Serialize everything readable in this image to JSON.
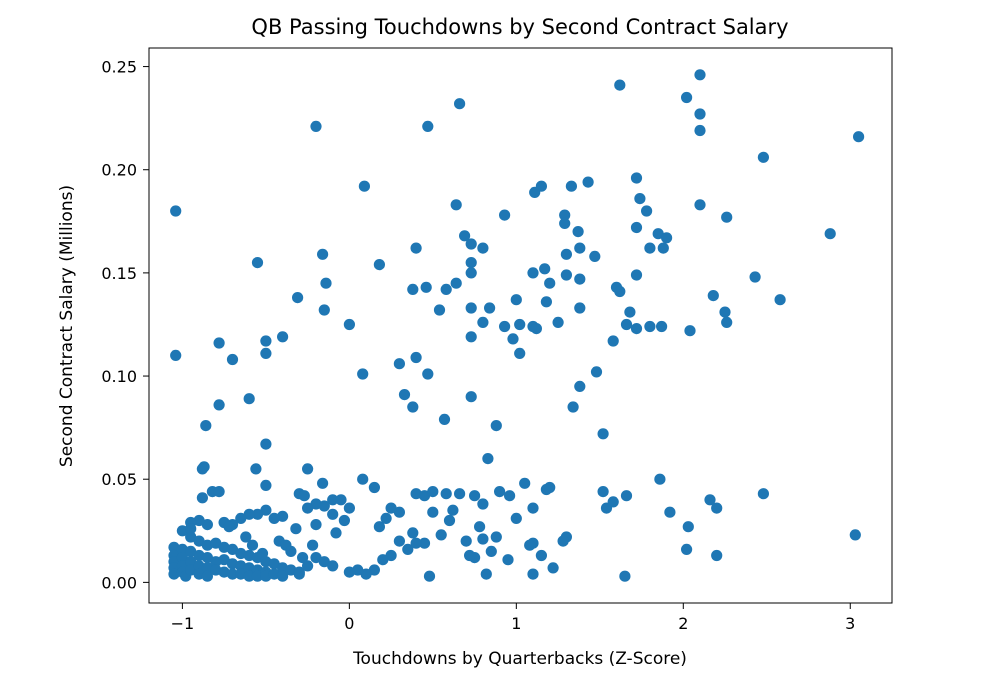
{
  "colors": {
    "points": "#1f77b4",
    "axes": "#000000",
    "background": "#ffffff"
  },
  "chart_data": {
    "type": "scatter",
    "title": "QB Passing Touchdowns by Second Contract Salary",
    "xlabel": "Touchdowns by Quarterbacks (Z-Score)",
    "ylabel": "Second Contract Salary (Millions)",
    "xlim": [
      -1.2,
      3.25
    ],
    "ylim": [
      -0.01,
      0.259
    ],
    "xticks": [
      -1,
      0,
      1,
      2,
      3
    ],
    "xtick_labels": [
      "−1",
      "0",
      "1",
      "2",
      "3"
    ],
    "yticks": [
      0.0,
      0.05,
      0.1,
      0.15,
      0.2,
      0.25
    ],
    "ytick_labels": [
      "0.00",
      "0.05",
      "0.10",
      "0.15",
      "0.20",
      "0.25"
    ],
    "grid": false,
    "legend": "none",
    "points": [
      [
        -1.04,
        0.18
      ],
      [
        -1.04,
        0.11
      ],
      [
        -0.2,
        0.221
      ],
      [
        0.47,
        0.221
      ],
      [
        0.66,
        0.232
      ],
      [
        1.62,
        0.241
      ],
      [
        2.1,
        0.246
      ],
      [
        2.02,
        0.235
      ],
      [
        2.1,
        0.227
      ],
      [
        2.1,
        0.219
      ],
      [
        3.05,
        0.216
      ],
      [
        2.48,
        0.206
      ],
      [
        0.09,
        0.192
      ],
      [
        1.11,
        0.189
      ],
      [
        1.15,
        0.192
      ],
      [
        1.33,
        0.192
      ],
      [
        1.43,
        0.194
      ],
      [
        1.72,
        0.196
      ],
      [
        0.64,
        0.183
      ],
      [
        0.93,
        0.178
      ],
      [
        1.29,
        0.178
      ],
      [
        1.29,
        0.174
      ],
      [
        1.37,
        0.17
      ],
      [
        1.74,
        0.186
      ],
      [
        1.78,
        0.18
      ],
      [
        1.72,
        0.172
      ],
      [
        2.1,
        0.183
      ],
      [
        2.26,
        0.177
      ],
      [
        2.88,
        0.169
      ],
      [
        1.85,
        0.169
      ],
      [
        1.9,
        0.167
      ],
      [
        1.88,
        0.162
      ],
      [
        1.8,
        0.162
      ],
      [
        1.38,
        0.162
      ],
      [
        1.3,
        0.159
      ],
      [
        1.47,
        0.158
      ],
      [
        0.69,
        0.168
      ],
      [
        0.73,
        0.164
      ],
      [
        0.8,
        0.162
      ],
      [
        0.4,
        0.162
      ],
      [
        -0.16,
        0.159
      ],
      [
        -0.55,
        0.155
      ],
      [
        0.18,
        0.154
      ],
      [
        0.73,
        0.155
      ],
      [
        0.73,
        0.15
      ],
      [
        1.1,
        0.15
      ],
      [
        1.17,
        0.152
      ],
      [
        1.2,
        0.145
      ],
      [
        1.3,
        0.149
      ],
      [
        1.38,
        0.147
      ],
      [
        1.72,
        0.149
      ],
      [
        0.64,
        0.145
      ],
      [
        0.58,
        0.142
      ],
      [
        0.46,
        0.143
      ],
      [
        0.38,
        0.142
      ],
      [
        -0.14,
        0.145
      ],
      [
        -0.31,
        0.138
      ],
      [
        -0.15,
        0.132
      ],
      [
        0.54,
        0.132
      ],
      [
        0.73,
        0.133
      ],
      [
        0.84,
        0.133
      ],
      [
        1.0,
        0.137
      ],
      [
        1.18,
        0.136
      ],
      [
        1.38,
        0.133
      ],
      [
        1.6,
        0.143
      ],
      [
        1.62,
        0.141
      ],
      [
        2.18,
        0.139
      ],
      [
        2.43,
        0.148
      ],
      [
        2.58,
        0.137
      ],
      [
        2.25,
        0.131
      ],
      [
        2.26,
        0.126
      ],
      [
        1.68,
        0.131
      ],
      [
        1.66,
        0.125
      ],
      [
        1.72,
        0.123
      ],
      [
        1.8,
        0.124
      ],
      [
        1.87,
        0.124
      ],
      [
        2.04,
        0.122
      ],
      [
        1.58,
        0.117
      ],
      [
        1.25,
        0.126
      ],
      [
        1.1,
        0.124
      ],
      [
        1.12,
        0.123
      ],
      [
        1.02,
        0.125
      ],
      [
        0.93,
        0.124
      ],
      [
        0.8,
        0.126
      ],
      [
        0.73,
        0.119
      ],
      [
        0.98,
        0.118
      ],
      [
        1.02,
        0.111
      ],
      [
        0.0,
        0.125
      ],
      [
        -0.4,
        0.119
      ],
      [
        -0.5,
        0.117
      ],
      [
        -0.5,
        0.111
      ],
      [
        -0.78,
        0.116
      ],
      [
        -0.7,
        0.108
      ],
      [
        0.3,
        0.106
      ],
      [
        0.4,
        0.109
      ],
      [
        0.47,
        0.101
      ],
      [
        0.08,
        0.101
      ],
      [
        0.33,
        0.091
      ],
      [
        0.38,
        0.085
      ],
      [
        0.57,
        0.079
      ],
      [
        0.73,
        0.09
      ],
      [
        0.88,
        0.076
      ],
      [
        1.48,
        0.102
      ],
      [
        1.38,
        0.095
      ],
      [
        1.34,
        0.085
      ],
      [
        1.52,
        0.072
      ],
      [
        -0.6,
        0.089
      ],
      [
        -0.78,
        0.086
      ],
      [
        -0.86,
        0.076
      ],
      [
        -0.5,
        0.067
      ],
      [
        -0.56,
        0.055
      ],
      [
        -0.87,
        0.056
      ],
      [
        -0.88,
        0.055
      ],
      [
        -0.5,
        0.047
      ],
      [
        -0.25,
        0.055
      ],
      [
        -0.16,
        0.048
      ],
      [
        -0.3,
        0.043
      ],
      [
        -0.27,
        0.042
      ],
      [
        -0.2,
        0.038
      ],
      [
        -0.15,
        0.037
      ],
      [
        -0.1,
        0.04
      ],
      [
        -0.05,
        0.04
      ],
      [
        0.0,
        0.036
      ],
      [
        0.08,
        0.05
      ],
      [
        0.15,
        0.046
      ],
      [
        0.3,
        0.034
      ],
      [
        0.25,
        0.036
      ],
      [
        0.4,
        0.043
      ],
      [
        0.45,
        0.042
      ],
      [
        0.5,
        0.044
      ],
      [
        0.58,
        0.043
      ],
      [
        0.66,
        0.043
      ],
      [
        0.75,
        0.042
      ],
      [
        0.8,
        0.038
      ],
      [
        0.83,
        0.06
      ],
      [
        0.9,
        0.044
      ],
      [
        0.96,
        0.042
      ],
      [
        1.05,
        0.048
      ],
      [
        1.0,
        0.031
      ],
      [
        1.1,
        0.036
      ],
      [
        1.18,
        0.045
      ],
      [
        1.2,
        0.046
      ],
      [
        1.3,
        0.022
      ],
      [
        1.52,
        0.044
      ],
      [
        1.54,
        0.036
      ],
      [
        1.58,
        0.039
      ],
      [
        1.66,
        0.042
      ],
      [
        1.86,
        0.05
      ],
      [
        1.92,
        0.034
      ],
      [
        2.03,
        0.027
      ],
      [
        2.16,
        0.04
      ],
      [
        2.2,
        0.036
      ],
      [
        2.48,
        0.043
      ],
      [
        3.03,
        0.023
      ],
      [
        2.02,
        0.016
      ],
      [
        2.2,
        0.013
      ],
      [
        1.65,
        0.003
      ],
      [
        1.22,
        0.007
      ],
      [
        1.1,
        0.004
      ],
      [
        1.15,
        0.013
      ],
      [
        1.1,
        0.019
      ],
      [
        0.95,
        0.011
      ],
      [
        0.85,
        0.015
      ],
      [
        0.8,
        0.021
      ],
      [
        0.75,
        0.012
      ],
      [
        0.72,
        0.013
      ],
      [
        0.82,
        0.004
      ],
      [
        0.7,
        0.02
      ],
      [
        0.6,
        0.03
      ],
      [
        0.55,
        0.023
      ],
      [
        0.5,
        0.034
      ],
      [
        0.45,
        0.019
      ],
      [
        0.48,
        0.003
      ],
      [
        0.38,
        0.024
      ],
      [
        0.4,
        0.019
      ],
      [
        0.3,
        0.02
      ],
      [
        0.25,
        0.013
      ],
      [
        0.2,
        0.011
      ],
      [
        0.15,
        0.006
      ],
      [
        0.1,
        0.004
      ],
      [
        0.05,
        0.006
      ],
      [
        0.0,
        0.005
      ],
      [
        -0.08,
        0.024
      ],
      [
        -0.03,
        0.03
      ],
      [
        -0.1,
        0.033
      ],
      [
        -0.2,
        0.028
      ],
      [
        -0.25,
        0.036
      ],
      [
        -0.32,
        0.026
      ],
      [
        -0.4,
        0.032
      ],
      [
        -0.45,
        0.031
      ],
      [
        -0.5,
        0.035
      ],
      [
        -0.55,
        0.033
      ],
      [
        -0.6,
        0.033
      ],
      [
        -0.65,
        0.031
      ],
      [
        -0.7,
        0.028
      ],
      [
        -0.75,
        0.029
      ],
      [
        -0.85,
        0.028
      ],
      [
        -0.9,
        0.03
      ],
      [
        -0.95,
        0.029
      ],
      [
        -1.0,
        0.025
      ],
      [
        -0.95,
        0.022
      ],
      [
        -0.9,
        0.02
      ],
      [
        -0.85,
        0.018
      ],
      [
        -0.8,
        0.019
      ],
      [
        -0.75,
        0.017
      ],
      [
        -0.7,
        0.016
      ],
      [
        -0.65,
        0.014
      ],
      [
        -0.6,
        0.013
      ],
      [
        -0.55,
        0.012
      ],
      [
        -0.5,
        0.01
      ],
      [
        -0.45,
        0.009
      ],
      [
        -0.4,
        0.007
      ],
      [
        -0.35,
        0.006
      ],
      [
        -0.3,
        0.005
      ],
      [
        -0.25,
        0.008
      ],
      [
        -0.2,
        0.012
      ],
      [
        -0.15,
        0.01
      ],
      [
        -0.1,
        0.008
      ],
      [
        -1.05,
        0.017
      ],
      [
        -1.05,
        0.013
      ],
      [
        -1.05,
        0.01
      ],
      [
        -1.05,
        0.007
      ],
      [
        -1.05,
        0.004
      ],
      [
        -1.0,
        0.016
      ],
      [
        -1.0,
        0.012
      ],
      [
        -1.0,
        0.008
      ],
      [
        -1.0,
        0.005
      ],
      [
        -0.98,
        0.003
      ],
      [
        -0.95,
        0.015
      ],
      [
        -0.95,
        0.01
      ],
      [
        -0.95,
        0.006
      ],
      [
        -0.9,
        0.013
      ],
      [
        -0.9,
        0.008
      ],
      [
        -0.9,
        0.004
      ],
      [
        -0.85,
        0.012
      ],
      [
        -0.85,
        0.007
      ],
      [
        -0.85,
        0.003
      ],
      [
        -0.8,
        0.01
      ],
      [
        -0.8,
        0.006
      ],
      [
        -0.75,
        0.011
      ],
      [
        -0.75,
        0.005
      ],
      [
        -0.7,
        0.009
      ],
      [
        -0.7,
        0.004
      ],
      [
        -0.65,
        0.008
      ],
      [
        -0.65,
        0.004
      ],
      [
        -0.6,
        0.007
      ],
      [
        -0.6,
        0.003
      ],
      [
        -0.55,
        0.006
      ],
      [
        -0.55,
        0.003
      ],
      [
        -0.5,
        0.005
      ],
      [
        -0.5,
        0.003
      ],
      [
        -0.45,
        0.004
      ],
      [
        -0.4,
        0.003
      ],
      [
        -0.3,
        0.004
      ],
      [
        -0.95,
        0.026
      ],
      [
        -0.88,
        0.041
      ],
      [
        -0.82,
        0.044
      ],
      [
        -0.78,
        0.044
      ],
      [
        -0.72,
        0.027
      ],
      [
        -0.62,
        0.022
      ],
      [
        -0.58,
        0.018
      ],
      [
        -0.52,
        0.014
      ],
      [
        -0.42,
        0.02
      ],
      [
        -0.38,
        0.018
      ],
      [
        -0.35,
        0.015
      ],
      [
        -0.28,
        0.012
      ],
      [
        -0.22,
        0.018
      ],
      [
        0.18,
        0.027
      ],
      [
        0.22,
        0.031
      ],
      [
        0.35,
        0.016
      ],
      [
        0.62,
        0.035
      ],
      [
        0.78,
        0.027
      ],
      [
        0.88,
        0.022
      ],
      [
        1.08,
        0.018
      ],
      [
        1.28,
        0.02
      ]
    ]
  }
}
